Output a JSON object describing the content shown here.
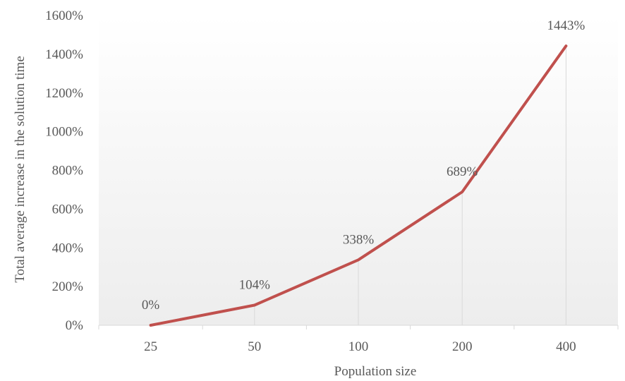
{
  "chart_data": {
    "type": "line",
    "categories": [
      "25",
      "50",
      "100",
      "200",
      "400"
    ],
    "series": [
      {
        "values": [
          0,
          104,
          338,
          689,
          1443
        ]
      }
    ],
    "data_labels": [
      "0%",
      "104%",
      "338%",
      "689%",
      "1443%"
    ],
    "y_ticks": [
      "0%",
      "200%",
      "400%",
      "600%",
      "800%",
      "1000%",
      "1200%",
      "1400%",
      "1600%"
    ],
    "ylim": [
      0,
      1600
    ],
    "xlabel": "Population size",
    "ylabel": "Total average increase in the solution time",
    "grid": false,
    "drop_lines": true,
    "colors": {
      "series": "#C0504D",
      "axis": "#D9D9D9",
      "drop_line": "#D9D9D9",
      "text": "#595959",
      "plot_bg_top": "#FFFFFF",
      "plot_bg_bottom": "#EDEDED"
    }
  }
}
